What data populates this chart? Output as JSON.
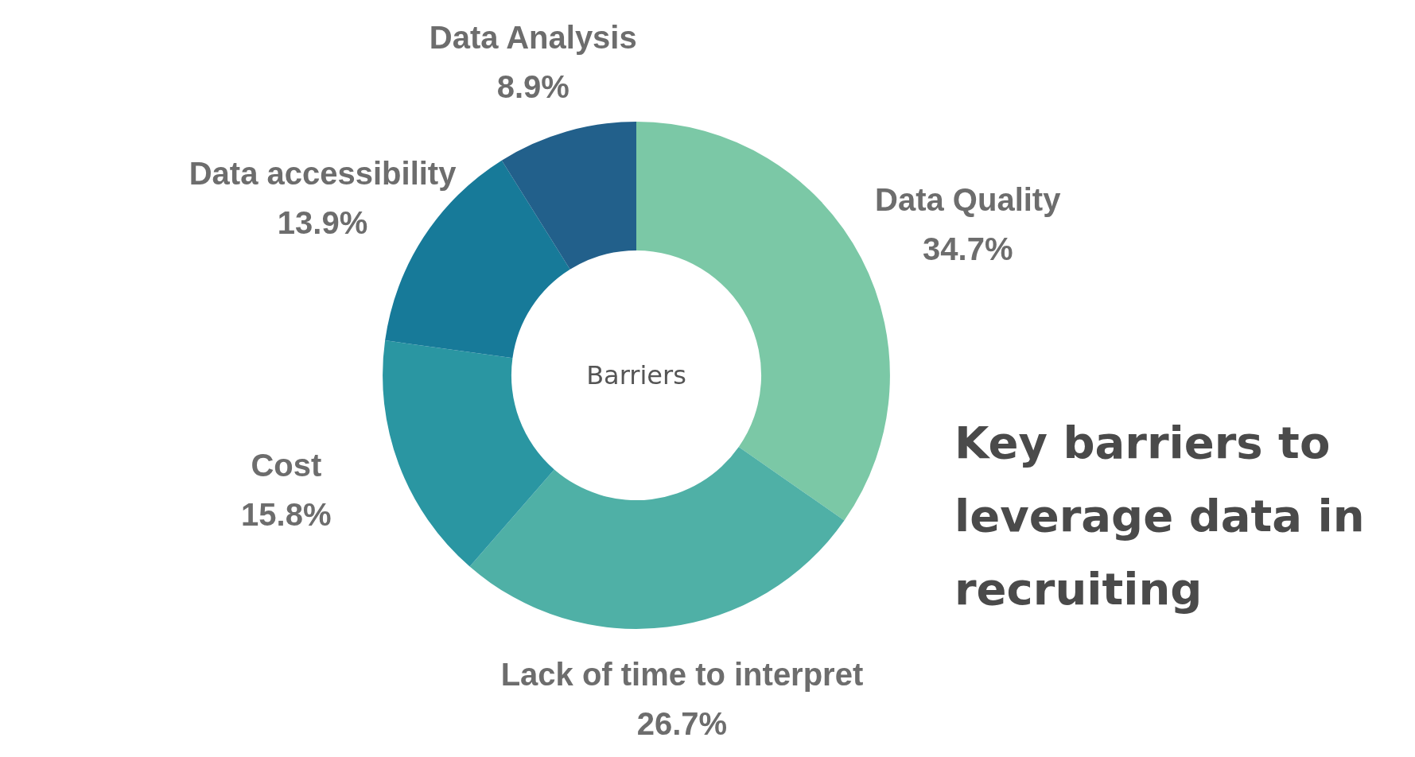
{
  "chart_data": {
    "type": "donut",
    "title": "Key barriers to leverage data in recruiting",
    "annotations": [
      "Barriers"
    ],
    "categories": [
      "Data Quality",
      "Lack of time to interpret",
      "Cost",
      "Data accessibility",
      "Data Analysis"
    ],
    "values": [
      34.7,
      26.7,
      15.8,
      13.9,
      8.9
    ],
    "colors": [
      "#7bc8a6",
      "#4fb0a6",
      "#2a96a2",
      "#177a99",
      "#22608b"
    ],
    "value_labels": [
      "34.7%",
      "26.7%",
      "15.8%",
      "13.9%",
      "8.9%"
    ],
    "legend": false
  }
}
